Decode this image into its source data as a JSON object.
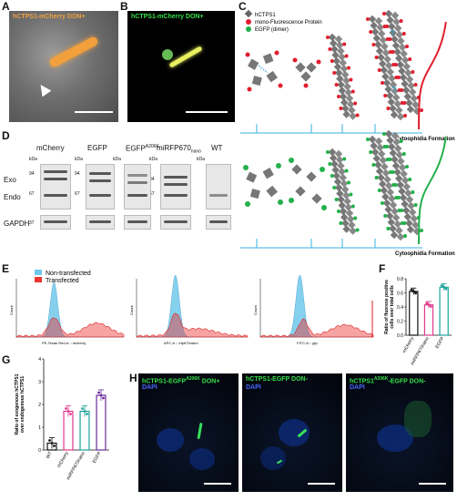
{
  "panels": {
    "A": {
      "label": "A",
      "title": "hCTPS1-mCherry  DON+"
    },
    "B": {
      "label": "B",
      "title": "hCTPS1-mCherry  DON+"
    },
    "C": {
      "label": "C",
      "legend": [
        "hCTPS1",
        "mono-Fluorescence Protein",
        "EGFP (dimer)"
      ],
      "question": "?",
      "formation_label": "Cytoophidia Formation"
    },
    "D": {
      "label": "D",
      "lanes": [
        "mCherry",
        "EGFP",
        "EGFP",
        "A206K",
        "miRFP670",
        "nano",
        "WT"
      ],
      "rows": [
        "Exo",
        "Endo",
        "GAPDH"
      ],
      "kda": "kDa",
      "markers": [
        "94",
        "67",
        "84",
        "37"
      ]
    },
    "E": {
      "label": "E",
      "legend": [
        "Non-transfected",
        "Transfected"
      ],
      "ylabel": "Count",
      "xlabels": [
        "PE-Texas Red-A :: mcherry",
        "APC-A :: irfp670nano",
        "FITC-A :: gfp"
      ]
    },
    "F": {
      "label": "F",
      "ylabel": "Ratio of fluorese positive cells over total cells"
    },
    "G": {
      "label": "G",
      "ylabel": "Ratio of exogenous hCTPS1 over endogenous hCTPS1"
    },
    "H": {
      "label": "H",
      "images": [
        {
          "t1": "hCTPS1-EGFP",
          "sup": "A206K",
          "t2": " DON+",
          "dapi": "DAPI"
        },
        {
          "t1": "hCTPS1-EGFP  DON-",
          "sup": "",
          "t2": "",
          "dapi": "DAPI"
        },
        {
          "t1": "hCTPS1",
          "sup": "A206K",
          "t2": "-EGFP  DON-",
          "dapi": "DAPI"
        }
      ]
    }
  },
  "chart_data": [
    {
      "type": "bar",
      "panel": "F",
      "categories": [
        "mCherry",
        "miRFP670nano",
        "EGFP"
      ],
      "values": [
        0.62,
        0.43,
        0.68
      ],
      "ylabel": "Ratio of fluorese positive cells over total cells",
      "ylim": [
        0,
        0.8
      ],
      "yticks": [
        "0.0",
        "0.2",
        "0.4",
        "0.6",
        "0.8"
      ],
      "colors": [
        "#111111",
        "#e0388d",
        "#1aa39a"
      ]
    },
    {
      "type": "bar",
      "panel": "G",
      "categories": [
        "WT",
        "mCherry",
        "miRFP670nano",
        "EGFP"
      ],
      "values": [
        0.3,
        1.7,
        1.7,
        2.4
      ],
      "ylabel": "Ratio of exogenous hCTPS1 over endogenous hCTPS1",
      "ylim": [
        0,
        4
      ],
      "yticks": [
        "0",
        "1",
        "2",
        "3",
        "4"
      ],
      "colors": [
        "#111111",
        "#e0388d",
        "#1aa39a",
        "#6a2b9a"
      ]
    }
  ]
}
